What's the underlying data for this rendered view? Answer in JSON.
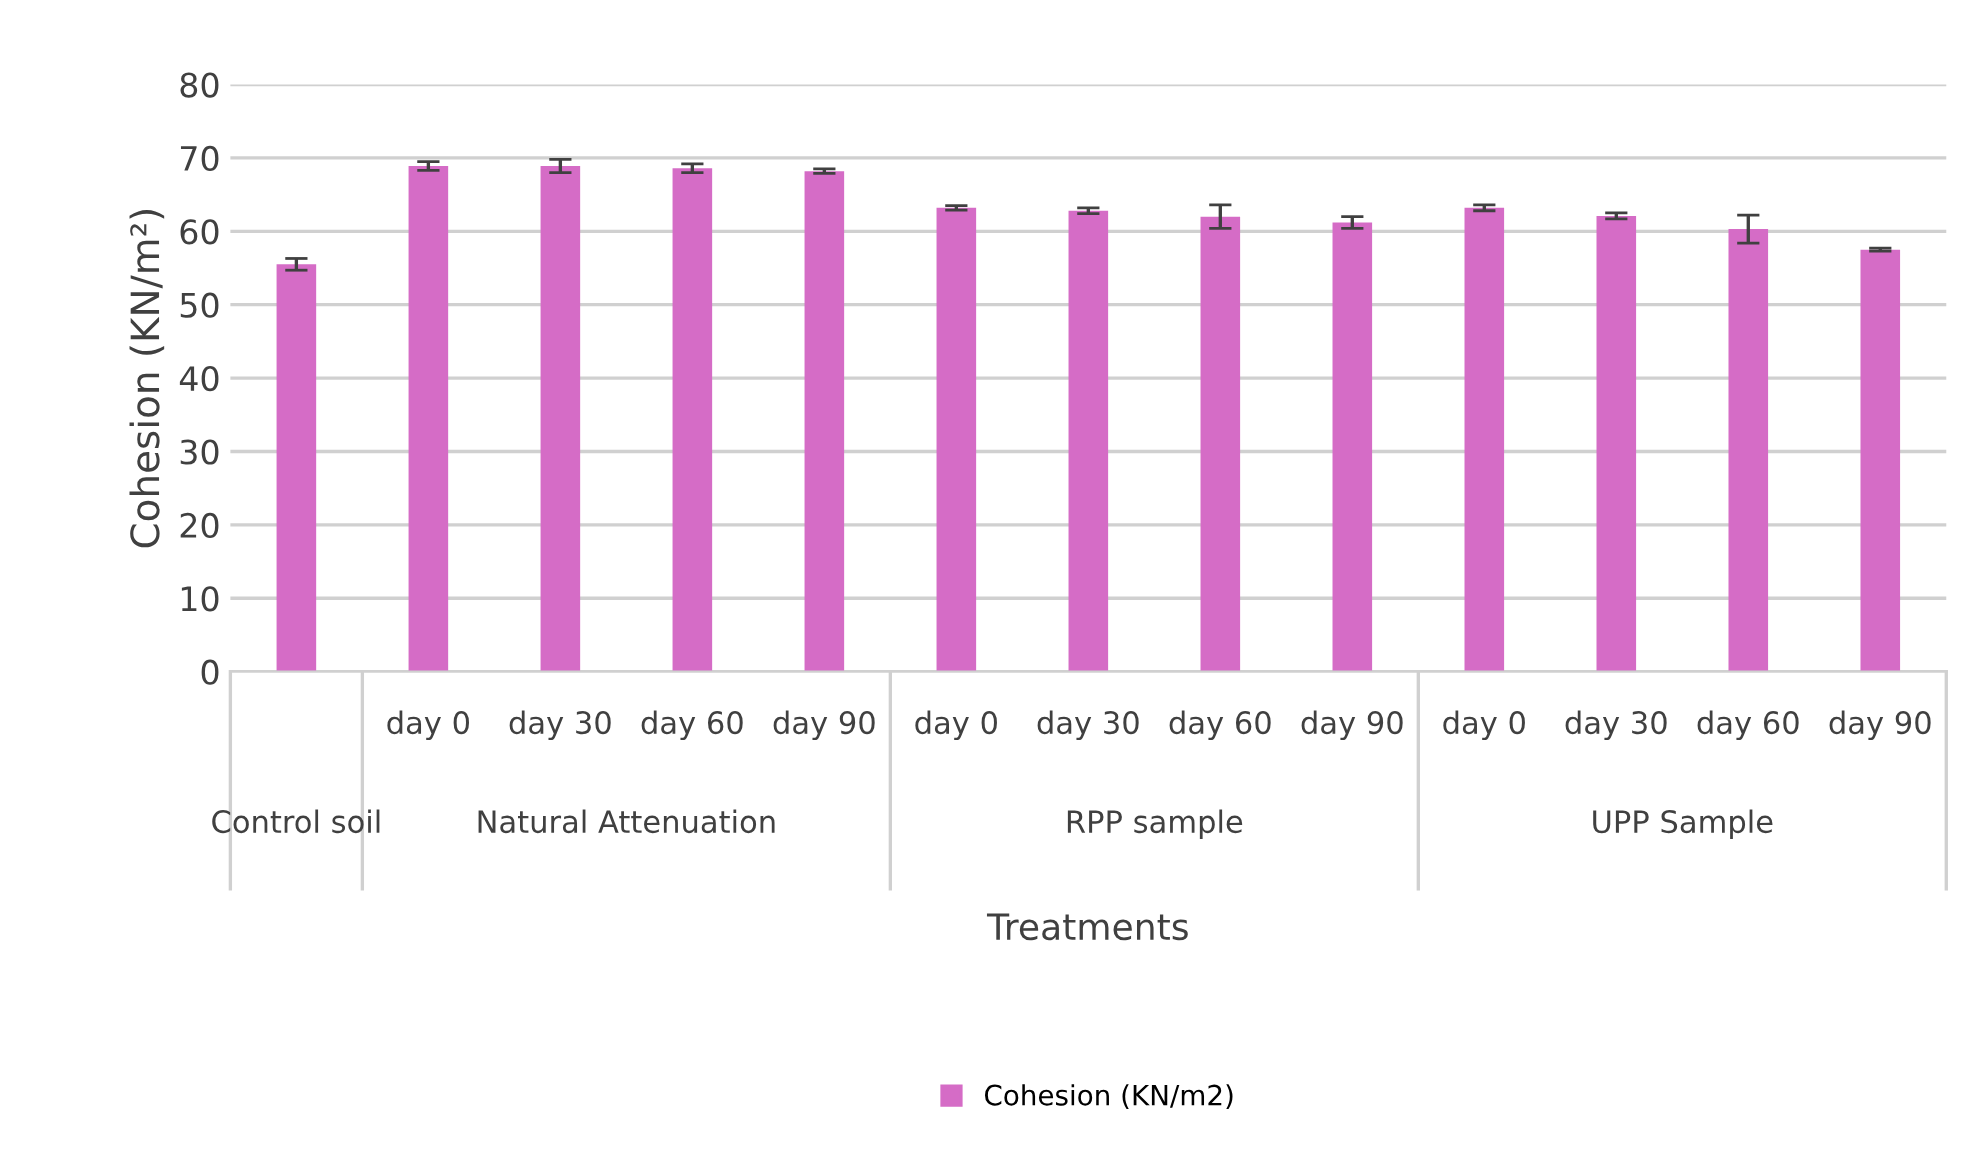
{
  "chart_data": {
    "type": "bar",
    "ylabel": "Cohesion (KN/m²)",
    "xlabel": "Treatments",
    "categories": [
      null,
      "day 0",
      "day 30",
      "day 60",
      "day 90",
      "day 0",
      "day 30",
      "day 60",
      "day 90",
      "day 0",
      "day 30",
      "day 60",
      "day 90"
    ],
    "series": [
      {
        "name": "Cohesion (KN/m2)",
        "color": "#d56cc6",
        "values": [
          55.5,
          68.9,
          68.9,
          68.6,
          68.2,
          63.2,
          62.8,
          62.0,
          61.2,
          63.2,
          62.1,
          60.3,
          57.5
        ],
        "errors": [
          0.8,
          0.6,
          0.9,
          0.6,
          0.3,
          0.3,
          0.4,
          1.6,
          0.8,
          0.4,
          0.4,
          1.9,
          0.2
        ]
      }
    ],
    "annotations": [
      "Control soil",
      "Natural Attenuation",
      "RPP sample",
      "UPP Sample"
    ],
    "ylim": [
      0,
      80
    ],
    "yticks": [
      0,
      10,
      20,
      30,
      40,
      50,
      60,
      70,
      80
    ],
    "grid": "y",
    "legend": "bottom"
  }
}
